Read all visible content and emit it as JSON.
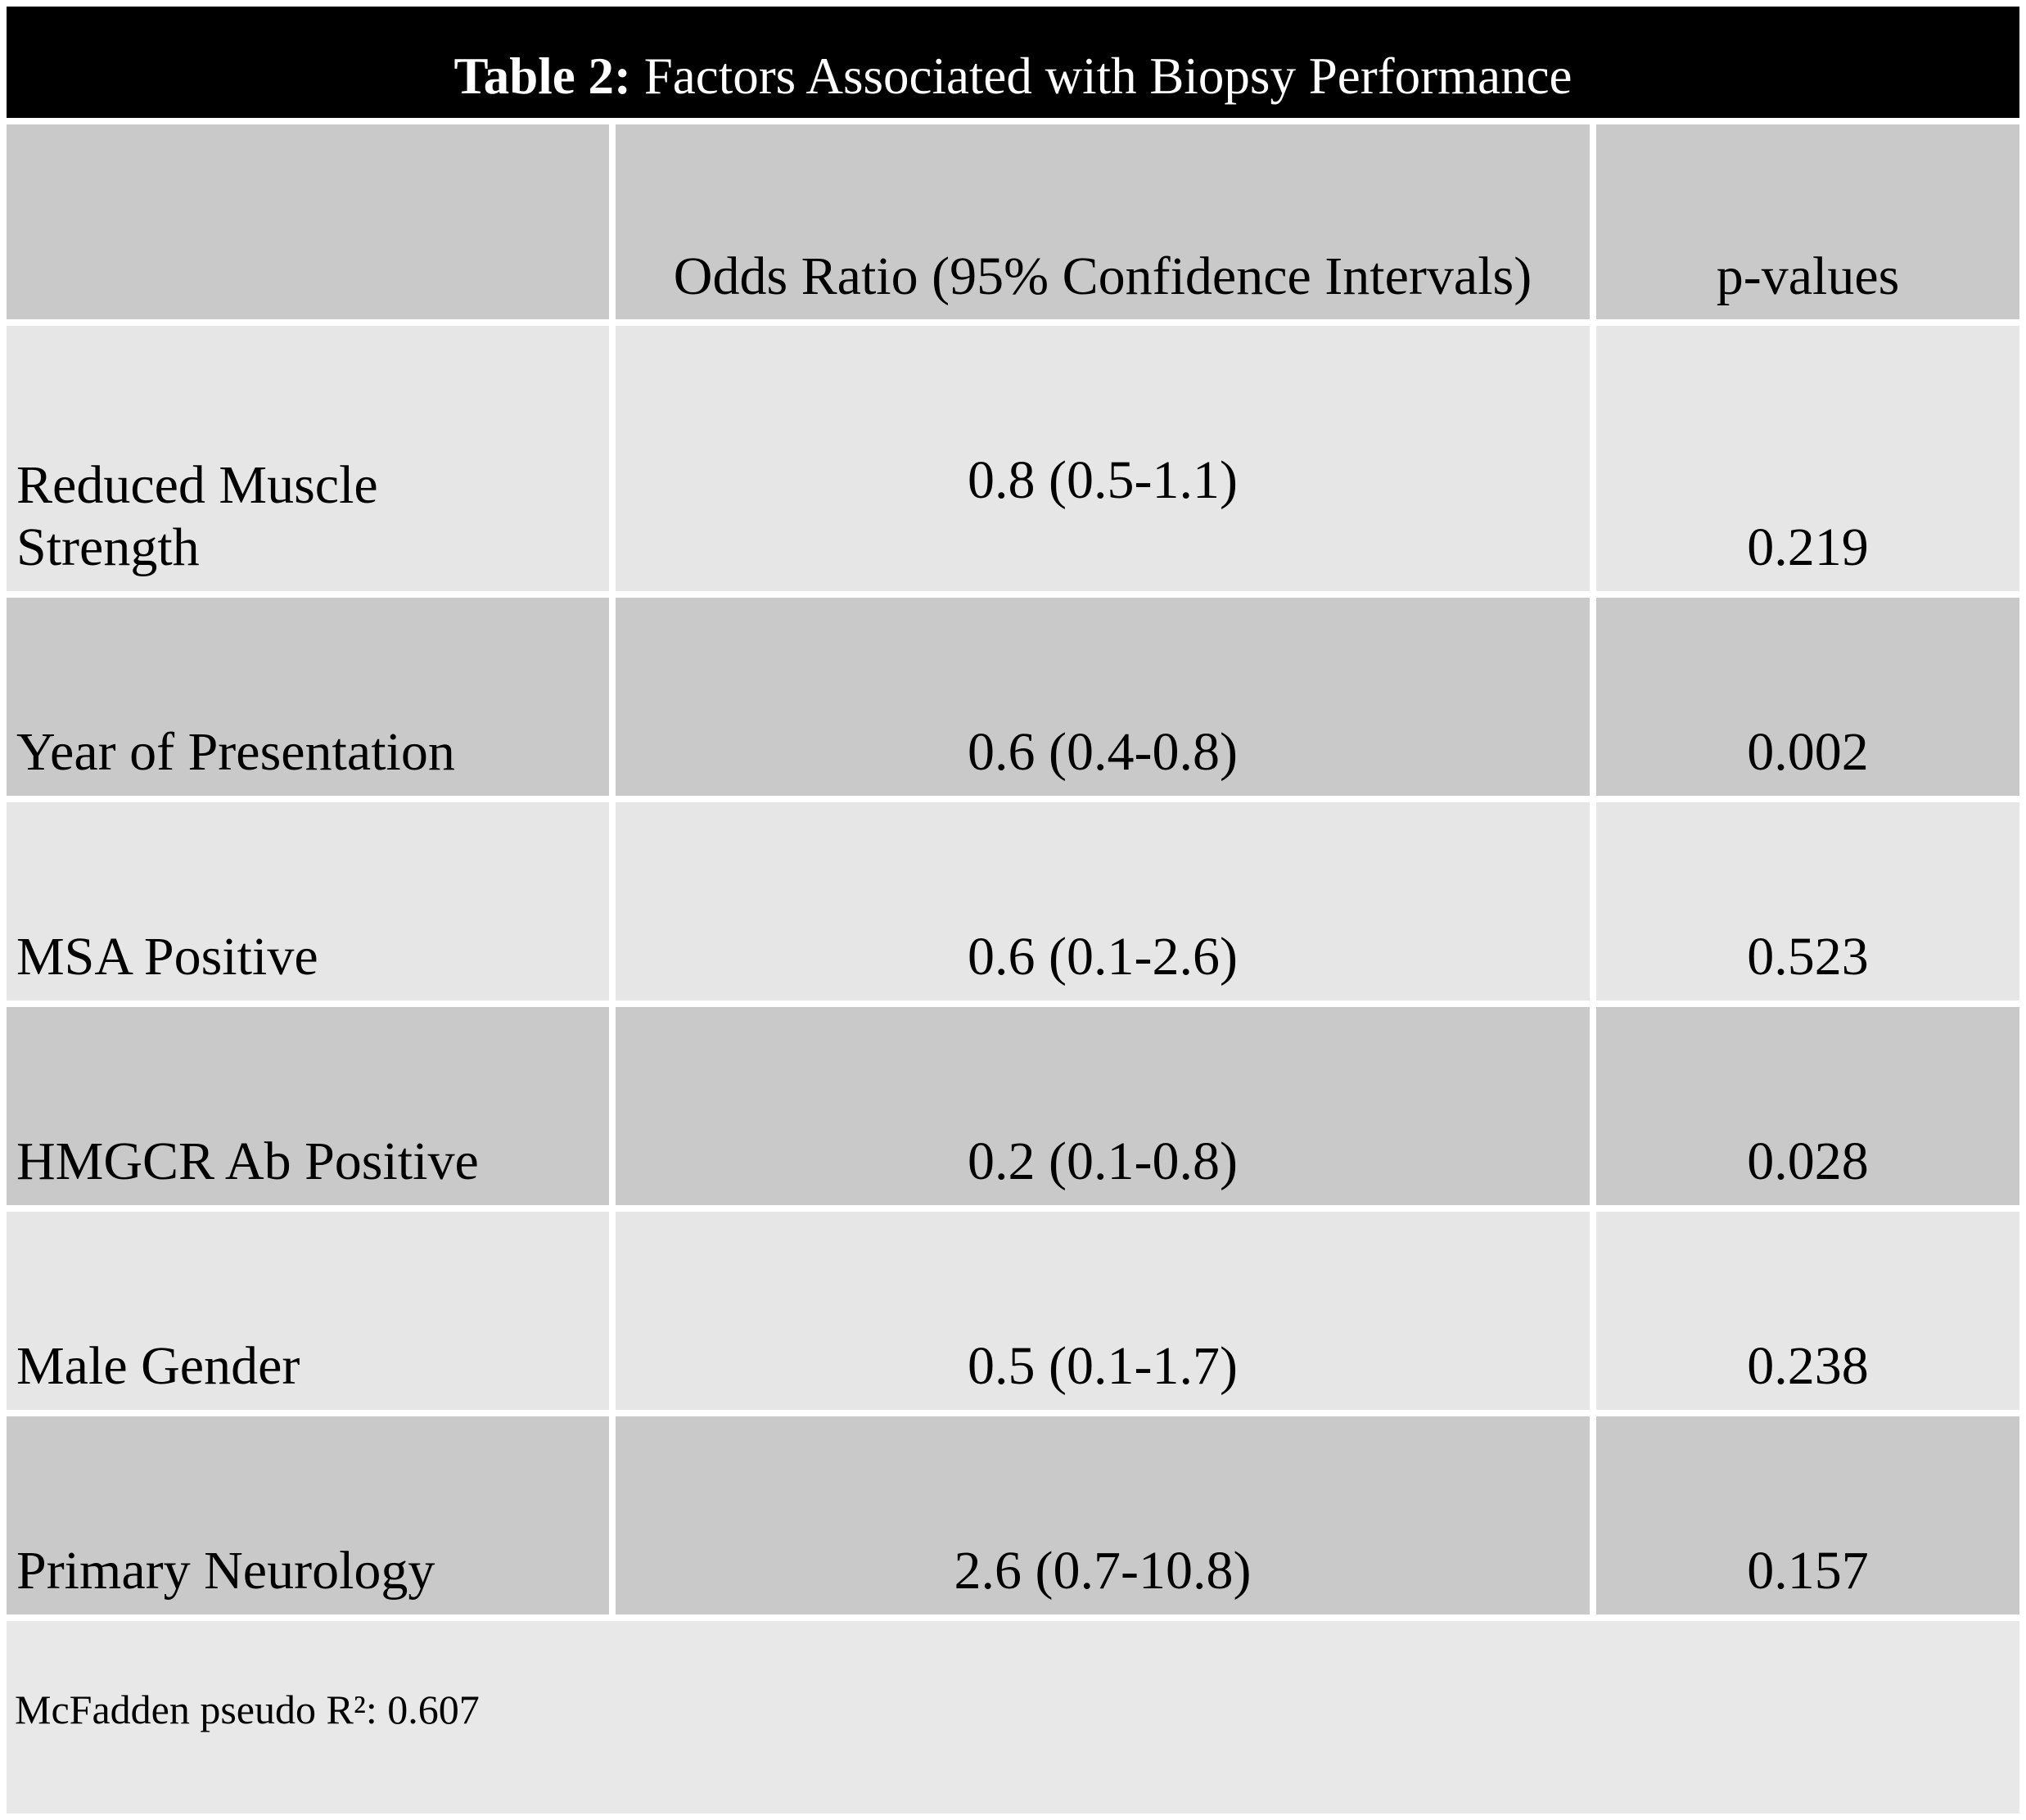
{
  "title": {
    "prefix": "Table 2:",
    "rest": " Factors Associated with Biopsy Performance"
  },
  "table": {
    "columns": [
      {
        "key": "factor",
        "label": ""
      },
      {
        "key": "odds_ratio",
        "label": "Odds Ratio (95% Confidence Intervals)"
      },
      {
        "key": "p_value",
        "label": "p-values"
      }
    ],
    "rows": [
      {
        "factor": "Reduced Muscle Strength",
        "odds_ratio": "0.8 (0.5-1.1)",
        "p_value": "0.219"
      },
      {
        "factor": "Year of Presentation",
        "odds_ratio": "0.6 (0.4-0.8)",
        "p_value": "0.002"
      },
      {
        "factor": "MSA Positive",
        "odds_ratio": "0.6 (0.1-2.6)",
        "p_value": "0.523"
      },
      {
        "factor": "HMGCR Ab Positive",
        "odds_ratio": "0.2 (0.1-0.8)",
        "p_value": "0.028"
      },
      {
        "factor": "Male Gender",
        "odds_ratio": "0.5 (0.1-1.7)",
        "p_value": "0.238"
      },
      {
        "factor": "Primary Neurology",
        "odds_ratio": "2.6 (0.7-10.8)",
        "p_value": "0.157"
      }
    ]
  },
  "footnote": {
    "text": "McFadden pseudo R²: 0.607"
  },
  "colors": {
    "title_bg": "#000000",
    "title_text": "#ffffff",
    "row_dark": "#c9c9c9",
    "row_light": "#e6e6e6",
    "footer_bg": "#e8e8e8",
    "text": "#000000",
    "background": "#ffffff"
  }
}
